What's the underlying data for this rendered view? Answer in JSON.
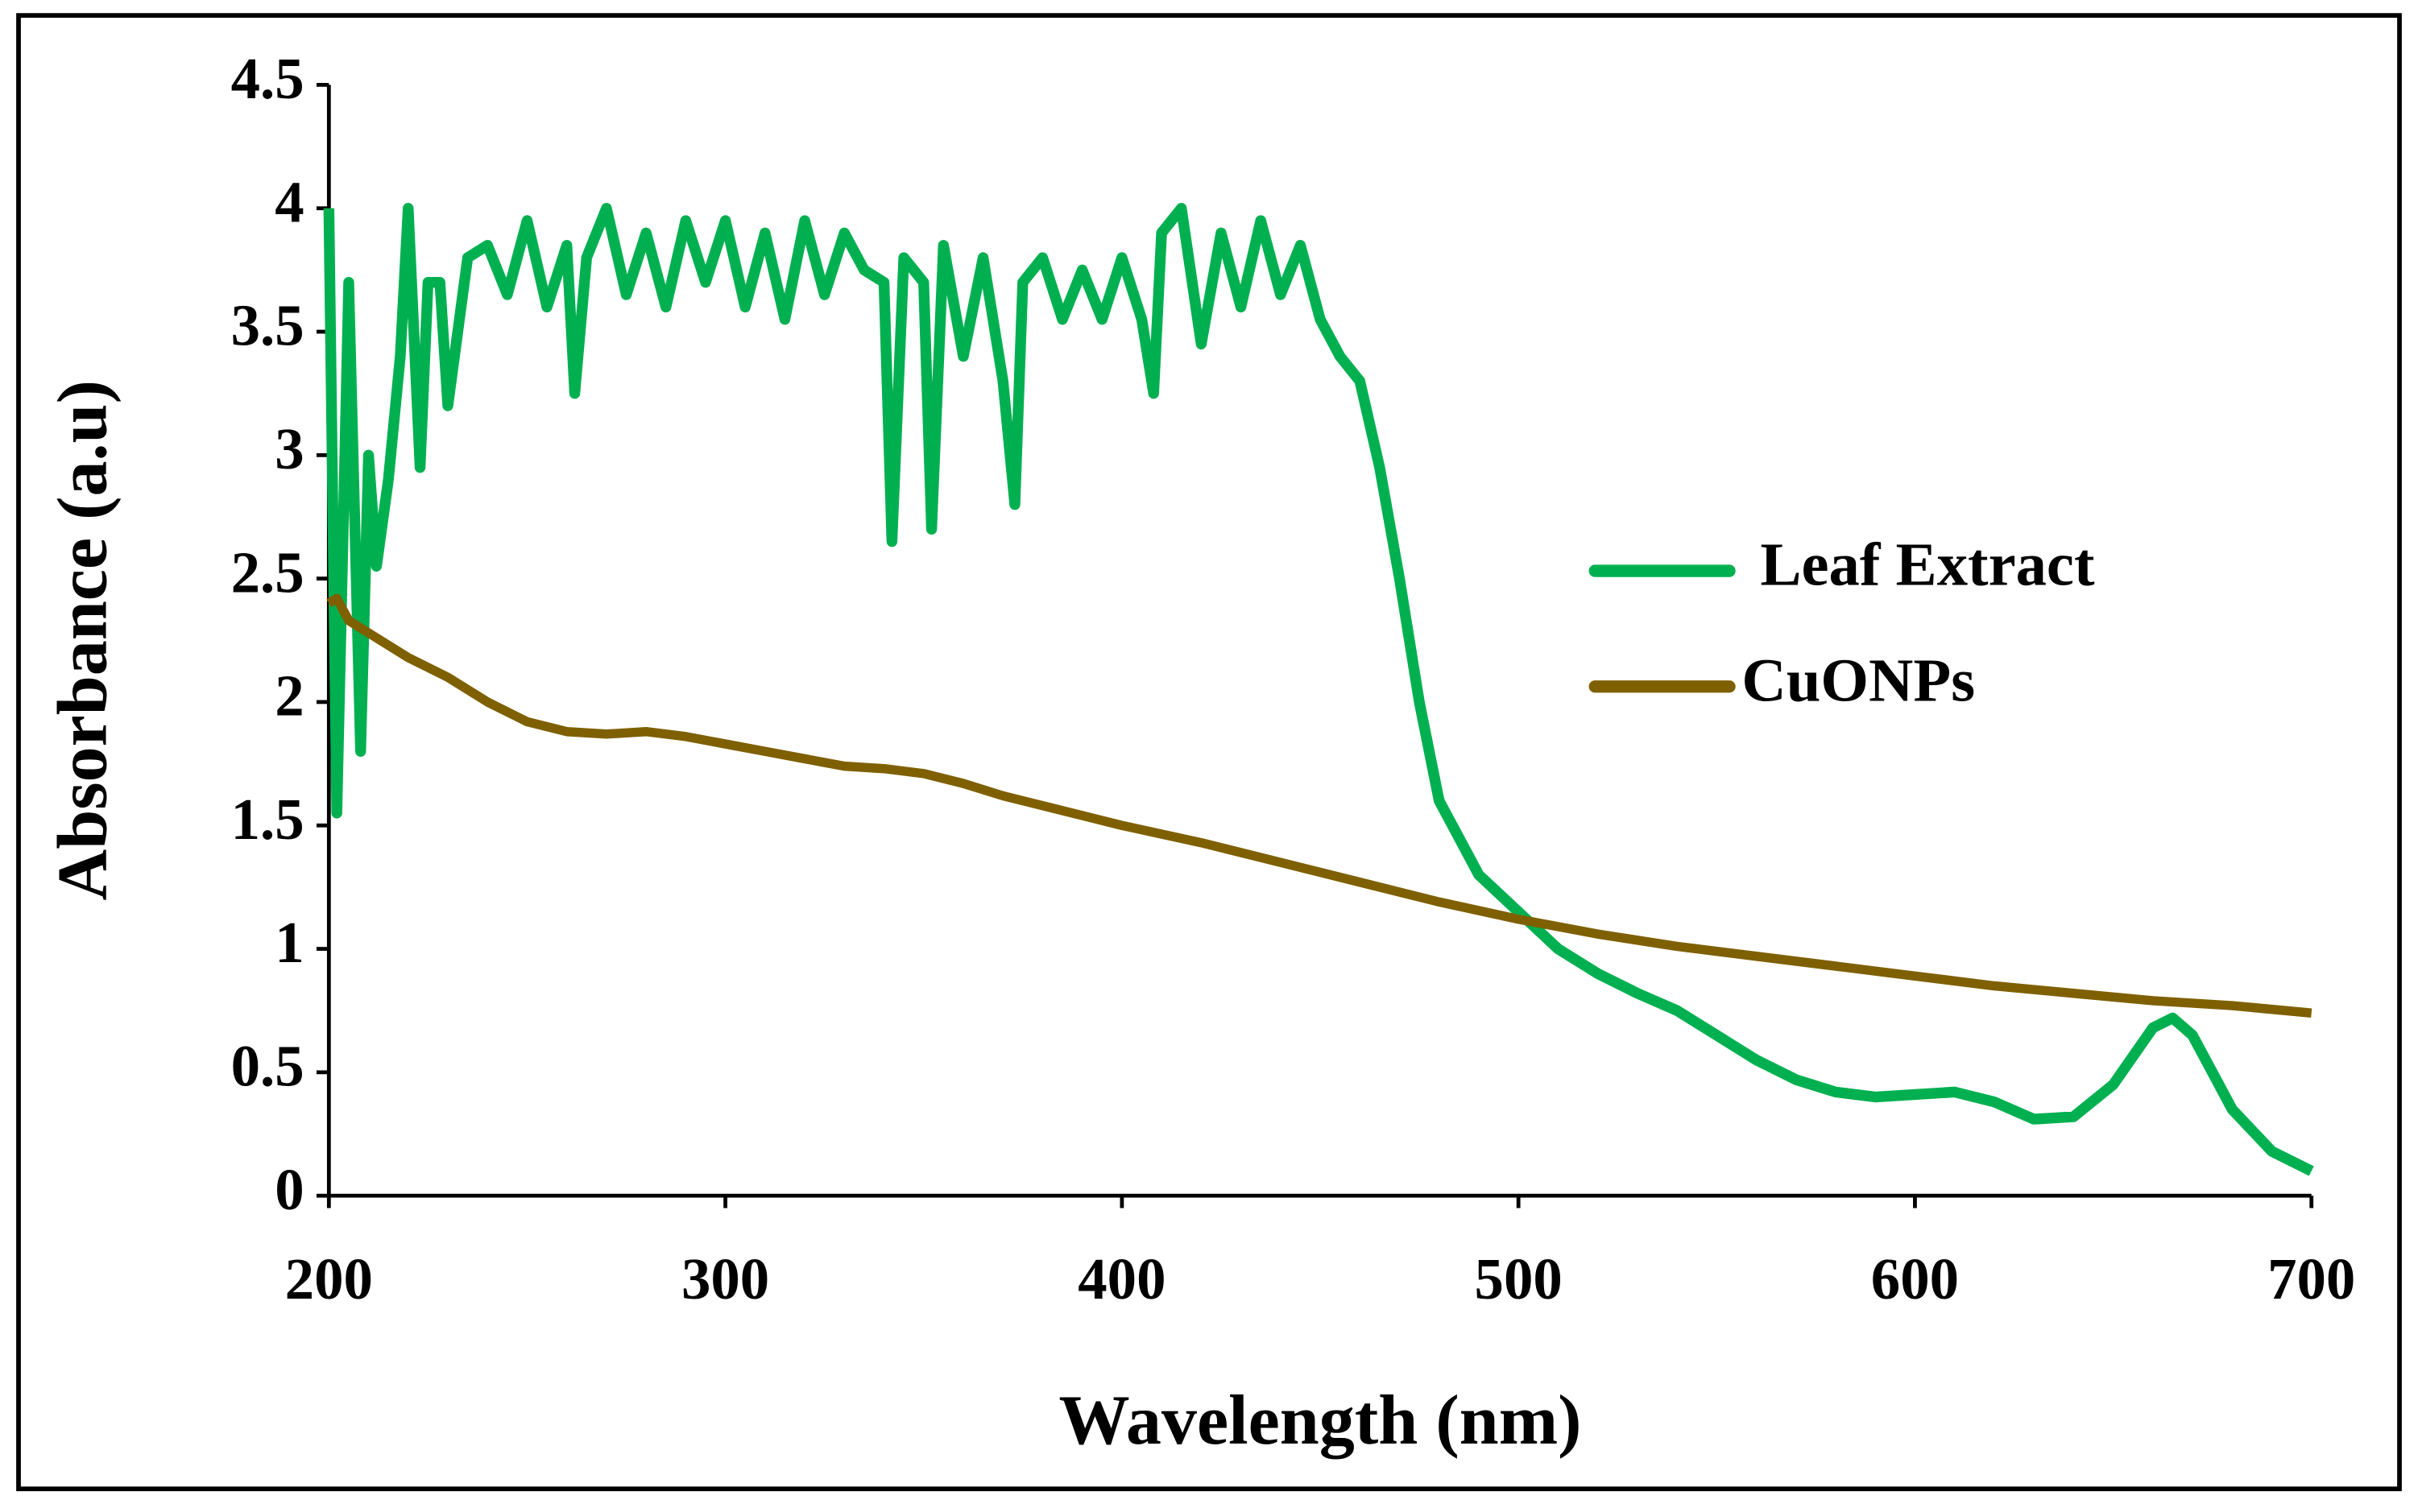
{
  "chart_data": {
    "type": "line",
    "xlabel": "Wavelength (nm)",
    "ylabel": "Absorbance (a.u)",
    "xlim": [
      200,
      700
    ],
    "xticks": [
      200,
      300,
      400,
      500,
      600,
      700
    ],
    "ylim": [
      0,
      4.5
    ],
    "yticks": [
      0,
      0.5,
      1,
      1.5,
      2,
      2.5,
      3,
      3.5,
      4,
      4.5
    ],
    "grid": false,
    "legend": "right",
    "series": [
      {
        "name": "Leaf Extract",
        "color": "#00b050",
        "x": [
          200,
          202,
          205,
          208,
          210,
          212,
          215,
          218,
          220,
          223,
          225,
          228,
          230,
          235,
          240,
          245,
          250,
          255,
          260,
          262,
          265,
          270,
          275,
          280,
          285,
          290,
          295,
          300,
          305,
          310,
          315,
          320,
          325,
          330,
          335,
          340,
          342,
          345,
          350,
          352,
          355,
          360,
          365,
          370,
          373,
          375,
          380,
          385,
          390,
          395,
          400,
          405,
          408,
          410,
          415,
          420,
          425,
          430,
          435,
          440,
          445,
          450,
          455,
          460,
          465,
          470,
          475,
          480,
          490,
          500,
          510,
          520,
          530,
          540,
          550,
          560,
          570,
          580,
          590,
          600,
          610,
          620,
          630,
          640,
          650,
          660,
          665,
          670,
          680,
          690,
          700
        ],
        "values": [
          4.0,
          1.55,
          3.7,
          1.8,
          3.0,
          2.55,
          2.9,
          3.4,
          4.0,
          2.95,
          3.7,
          3.7,
          3.2,
          3.8,
          3.85,
          3.65,
          3.95,
          3.6,
          3.85,
          3.25,
          3.8,
          4.0,
          3.65,
          3.9,
          3.6,
          3.95,
          3.7,
          3.95,
          3.6,
          3.9,
          3.55,
          3.95,
          3.65,
          3.9,
          3.75,
          3.7,
          2.65,
          3.8,
          3.7,
          2.7,
          3.85,
          3.4,
          3.8,
          3.3,
          2.8,
          3.7,
          3.8,
          3.55,
          3.75,
          3.55,
          3.8,
          3.55,
          3.25,
          3.9,
          4.0,
          3.45,
          3.9,
          3.6,
          3.95,
          3.65,
          3.85,
          3.55,
          3.4,
          3.3,
          2.95,
          2.5,
          2.0,
          1.6,
          1.3,
          1.15,
          1.0,
          0.9,
          0.82,
          0.75,
          0.65,
          0.55,
          0.47,
          0.42,
          0.4,
          0.41,
          0.42,
          0.38,
          0.31,
          0.32,
          0.45,
          0.68,
          0.72,
          0.65,
          0.35,
          0.18,
          0.1
        ]
      },
      {
        "name": "CuONPs",
        "color": "#7f6000",
        "x": [
          200,
          202,
          205,
          210,
          220,
          230,
          240,
          250,
          260,
          270,
          280,
          290,
          300,
          310,
          320,
          330,
          340,
          350,
          360,
          370,
          380,
          390,
          400,
          420,
          440,
          460,
          480,
          500,
          520,
          540,
          560,
          580,
          600,
          620,
          640,
          660,
          680,
          700
        ],
        "values": [
          2.4,
          2.42,
          2.33,
          2.28,
          2.18,
          2.1,
          2.0,
          1.92,
          1.88,
          1.87,
          1.88,
          1.86,
          1.83,
          1.8,
          1.77,
          1.74,
          1.73,
          1.71,
          1.67,
          1.62,
          1.58,
          1.54,
          1.5,
          1.43,
          1.35,
          1.27,
          1.19,
          1.12,
          1.06,
          1.01,
          0.97,
          0.93,
          0.89,
          0.85,
          0.82,
          0.79,
          0.77,
          0.74
        ]
      }
    ]
  }
}
